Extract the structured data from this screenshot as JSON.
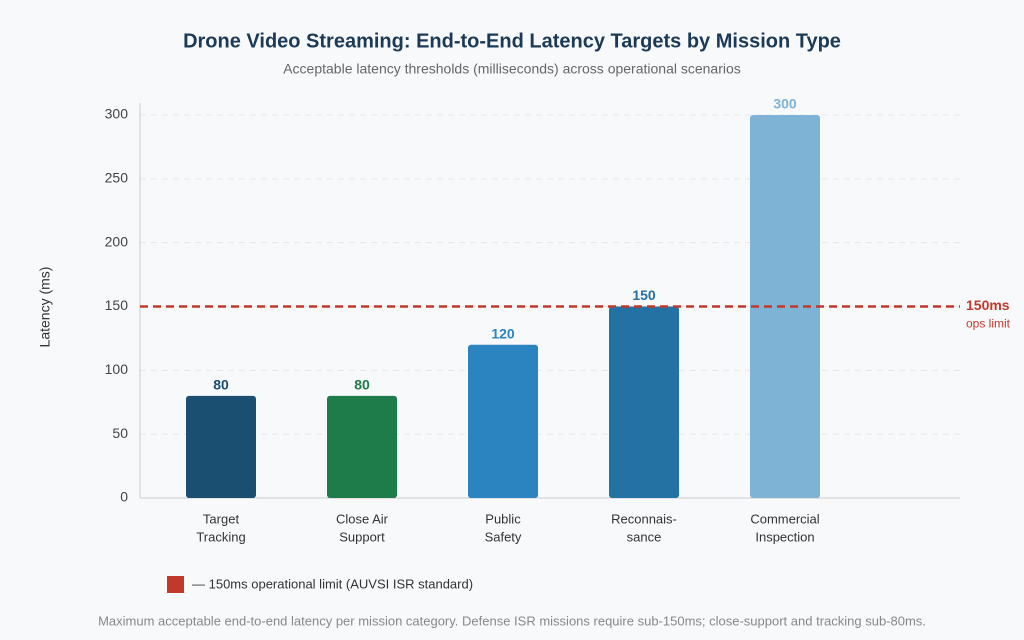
{
  "chart_data": {
    "type": "bar",
    "title": "Drone Video Streaming: End-to-End Latency Targets by Mission Type",
    "subtitle": "Acceptable latency thresholds (milliseconds) across operational scenarios",
    "y_label": "Latency (ms)",
    "categories": [
      [
        "Target",
        "Tracking"
      ],
      [
        "Close Air",
        "Support"
      ],
      [
        "Public",
        "Safety"
      ],
      [
        "Reconnais-",
        "sance"
      ],
      [
        "Commercial",
        "Inspection"
      ]
    ],
    "values": [
      80,
      80,
      120,
      150,
      300
    ],
    "colors": [
      "#1b4f72",
      "#1e7b4a",
      "#2b83c0",
      "#2471a3",
      "#7fb3d5"
    ],
    "ylim": [
      0,
      300
    ],
    "yticks": [
      0,
      50,
      100,
      150,
      200,
      250,
      300
    ],
    "grid": true,
    "reference_line": {
      "value": 150,
      "label": "150ms",
      "sublabel": "ops limit",
      "color": "#c0392b",
      "legend_label": "— 150ms operational limit (AUVSI ISR standard)"
    },
    "footnote": "Maximum acceptable end-to-end latency per mission category. Defense ISR missions require sub-150ms; close-support and tracking sub-80ms."
  }
}
